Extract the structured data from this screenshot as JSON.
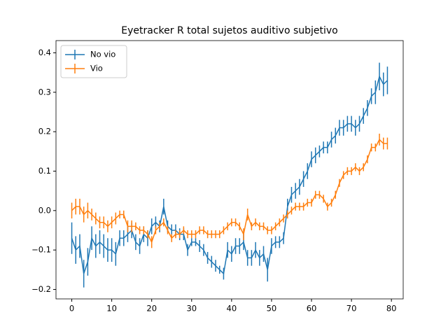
{
  "chart_data": {
    "type": "errorbar-line",
    "title": "Eyetracker R total sujetos auditivo subjetivo",
    "x": [
      0,
      1,
      2,
      3,
      4,
      5,
      6,
      7,
      8,
      9,
      10,
      11,
      12,
      13,
      14,
      15,
      16,
      17,
      18,
      19,
      20,
      21,
      22,
      23,
      24,
      25,
      26,
      27,
      28,
      29,
      30,
      31,
      32,
      33,
      34,
      35,
      36,
      37,
      38,
      39,
      40,
      41,
      42,
      43,
      44,
      45,
      46,
      47,
      48,
      49,
      50,
      51,
      52,
      53,
      54,
      55,
      56,
      57,
      58,
      59,
      60,
      61,
      62,
      63,
      64,
      65,
      66,
      67,
      68,
      69,
      70,
      71,
      72,
      73,
      74,
      75,
      76,
      77,
      78,
      79
    ],
    "series": [
      {
        "name": "No vio",
        "color": "#1f77b4",
        "values": [
          -0.07,
          -0.1,
          -0.09,
          -0.16,
          -0.13,
          -0.07,
          -0.09,
          -0.08,
          -0.09,
          -0.1,
          -0.1,
          -0.11,
          -0.07,
          -0.07,
          -0.06,
          -0.05,
          -0.08,
          -0.09,
          -0.06,
          -0.07,
          -0.04,
          -0.03,
          -0.04,
          0.01,
          -0.04,
          -0.05,
          -0.05,
          -0.06,
          -0.06,
          -0.1,
          -0.08,
          -0.08,
          -0.09,
          -0.1,
          -0.12,
          -0.13,
          -0.14,
          -0.15,
          -0.16,
          -0.1,
          -0.11,
          -0.09,
          -0.09,
          -0.08,
          -0.12,
          -0.12,
          -0.1,
          -0.12,
          -0.11,
          -0.15,
          -0.09,
          -0.08,
          -0.08,
          -0.07,
          0.01,
          0.04,
          0.05,
          0.06,
          0.08,
          0.1,
          0.13,
          0.14,
          0.15,
          0.16,
          0.16,
          0.18,
          0.19,
          0.21,
          0.21,
          0.22,
          0.22,
          0.21,
          0.22,
          0.24,
          0.26,
          0.29,
          0.3,
          0.34,
          0.32,
          0.33
        ],
        "errors": [
          0.04,
          0.035,
          0.03,
          0.035,
          0.035,
          0.03,
          0.03,
          0.03,
          0.03,
          0.03,
          0.03,
          0.03,
          0.02,
          0.02,
          0.02,
          0.02,
          0.02,
          0.02,
          0.02,
          0.02,
          0.02,
          0.015,
          0.015,
          0.02,
          0.015,
          0.015,
          0.015,
          0.015,
          0.015,
          0.015,
          0.01,
          0.01,
          0.015,
          0.015,
          0.015,
          0.015,
          0.015,
          0.01,
          0.015,
          0.02,
          0.02,
          0.02,
          0.02,
          0.02,
          0.02,
          0.02,
          0.02,
          0.02,
          0.02,
          0.03,
          0.02,
          0.015,
          0.015,
          0.015,
          0.02,
          0.02,
          0.02,
          0.02,
          0.02,
          0.02,
          0.02,
          0.02,
          0.015,
          0.015,
          0.015,
          0.02,
          0.02,
          0.02,
          0.02,
          0.02,
          0.02,
          0.02,
          0.02,
          0.02,
          0.02,
          0.02,
          0.03,
          0.035,
          0.03,
          0.035
        ]
      },
      {
        "name": "Vio",
        "color": "#ff7f0e",
        "values": [
          0.0,
          0.01,
          0.01,
          -0.01,
          0.0,
          -0.01,
          -0.02,
          -0.03,
          -0.03,
          -0.04,
          -0.03,
          -0.02,
          -0.01,
          -0.01,
          -0.04,
          -0.04,
          -0.04,
          -0.05,
          -0.05,
          -0.06,
          -0.08,
          -0.05,
          -0.04,
          -0.03,
          -0.05,
          -0.07,
          -0.06,
          -0.06,
          -0.05,
          -0.06,
          -0.06,
          -0.06,
          -0.05,
          -0.05,
          -0.06,
          -0.06,
          -0.06,
          -0.06,
          -0.05,
          -0.04,
          -0.03,
          -0.03,
          -0.04,
          -0.06,
          -0.01,
          -0.04,
          -0.03,
          -0.04,
          -0.04,
          -0.05,
          -0.05,
          -0.04,
          -0.03,
          -0.02,
          -0.01,
          0.0,
          0.01,
          0.01,
          0.01,
          0.02,
          0.02,
          0.04,
          0.04,
          0.03,
          0.01,
          0.02,
          0.04,
          0.07,
          0.09,
          0.1,
          0.1,
          0.11,
          0.1,
          0.11,
          0.13,
          0.16,
          0.16,
          0.18,
          0.17,
          0.17
        ],
        "errors": [
          0.02,
          0.02,
          0.02,
          0.02,
          0.02,
          0.015,
          0.015,
          0.015,
          0.015,
          0.015,
          0.015,
          0.015,
          0.01,
          0.01,
          0.015,
          0.015,
          0.01,
          0.01,
          0.01,
          0.01,
          0.015,
          0.01,
          0.01,
          0.01,
          0.01,
          0.01,
          0.01,
          0.01,
          0.01,
          0.01,
          0.01,
          0.01,
          0.01,
          0.01,
          0.01,
          0.01,
          0.01,
          0.01,
          0.01,
          0.01,
          0.01,
          0.01,
          0.01,
          0.015,
          0.015,
          0.01,
          0.01,
          0.01,
          0.01,
          0.01,
          0.01,
          0.01,
          0.01,
          0.01,
          0.01,
          0.01,
          0.01,
          0.01,
          0.01,
          0.01,
          0.01,
          0.01,
          0.01,
          0.01,
          0.01,
          0.01,
          0.01,
          0.01,
          0.01,
          0.01,
          0.01,
          0.01,
          0.01,
          0.01,
          0.01,
          0.01,
          0.01,
          0.015,
          0.015,
          0.015
        ]
      }
    ],
    "xlim": [
      -3.95,
      82.95
    ],
    "ylim": [
      -0.224,
      0.431
    ],
    "xticks": [
      0,
      10,
      20,
      30,
      40,
      50,
      60,
      70,
      80
    ],
    "yticks": [
      {
        "value": -0.2,
        "label": "−0.2"
      },
      {
        "value": -0.1,
        "label": "−0.1"
      },
      {
        "value": 0.0,
        "label": "0.0"
      },
      0.1,
      0.2,
      0.3,
      0.4
    ],
    "legend": "upper left"
  }
}
